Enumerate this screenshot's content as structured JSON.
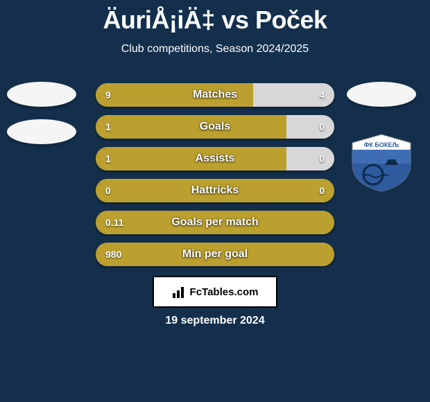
{
  "header": {
    "title": "ÄuriÅ¡iÄ‡ vs Poček",
    "subtitle": "Club competitions, Season 2024/2025"
  },
  "colors": {
    "background": "#132f4c",
    "bar_gold": "#bba02f",
    "bar_grey": "#d7d7d7",
    "badge_white": "#f5f5f5",
    "text": "#ffffff"
  },
  "bars": [
    {
      "label": "Matches",
      "left_text": "9",
      "right_text": "4",
      "left_pct": 66,
      "right_pct": 34,
      "show_right": true
    },
    {
      "label": "Goals",
      "left_text": "1",
      "right_text": "0",
      "left_pct": 80,
      "right_pct": 20,
      "show_right": true
    },
    {
      "label": "Assists",
      "left_text": "1",
      "right_text": "0",
      "left_pct": 80,
      "right_pct": 20,
      "show_right": true
    },
    {
      "label": "Hattricks",
      "left_text": "0",
      "right_text": "0",
      "left_pct": 100,
      "right_pct": 0,
      "show_right": true
    },
    {
      "label": "Goals per match",
      "left_text": "0.11",
      "right_text": "",
      "left_pct": 100,
      "right_pct": 0,
      "show_right": false
    },
    {
      "label": "Min per goal",
      "left_text": "980",
      "right_text": "",
      "left_pct": 100,
      "right_pct": 0,
      "show_right": false
    }
  ],
  "footer": {
    "brand": "FcTables.com",
    "date": "19 september 2024"
  },
  "shield": {
    "outer_fill": "#ffffff",
    "inner_top": "#3e6db3",
    "inner_mid": "#2e5a9e",
    "text": "ФК БОКЕЉ",
    "text_color": "#ffffff"
  }
}
